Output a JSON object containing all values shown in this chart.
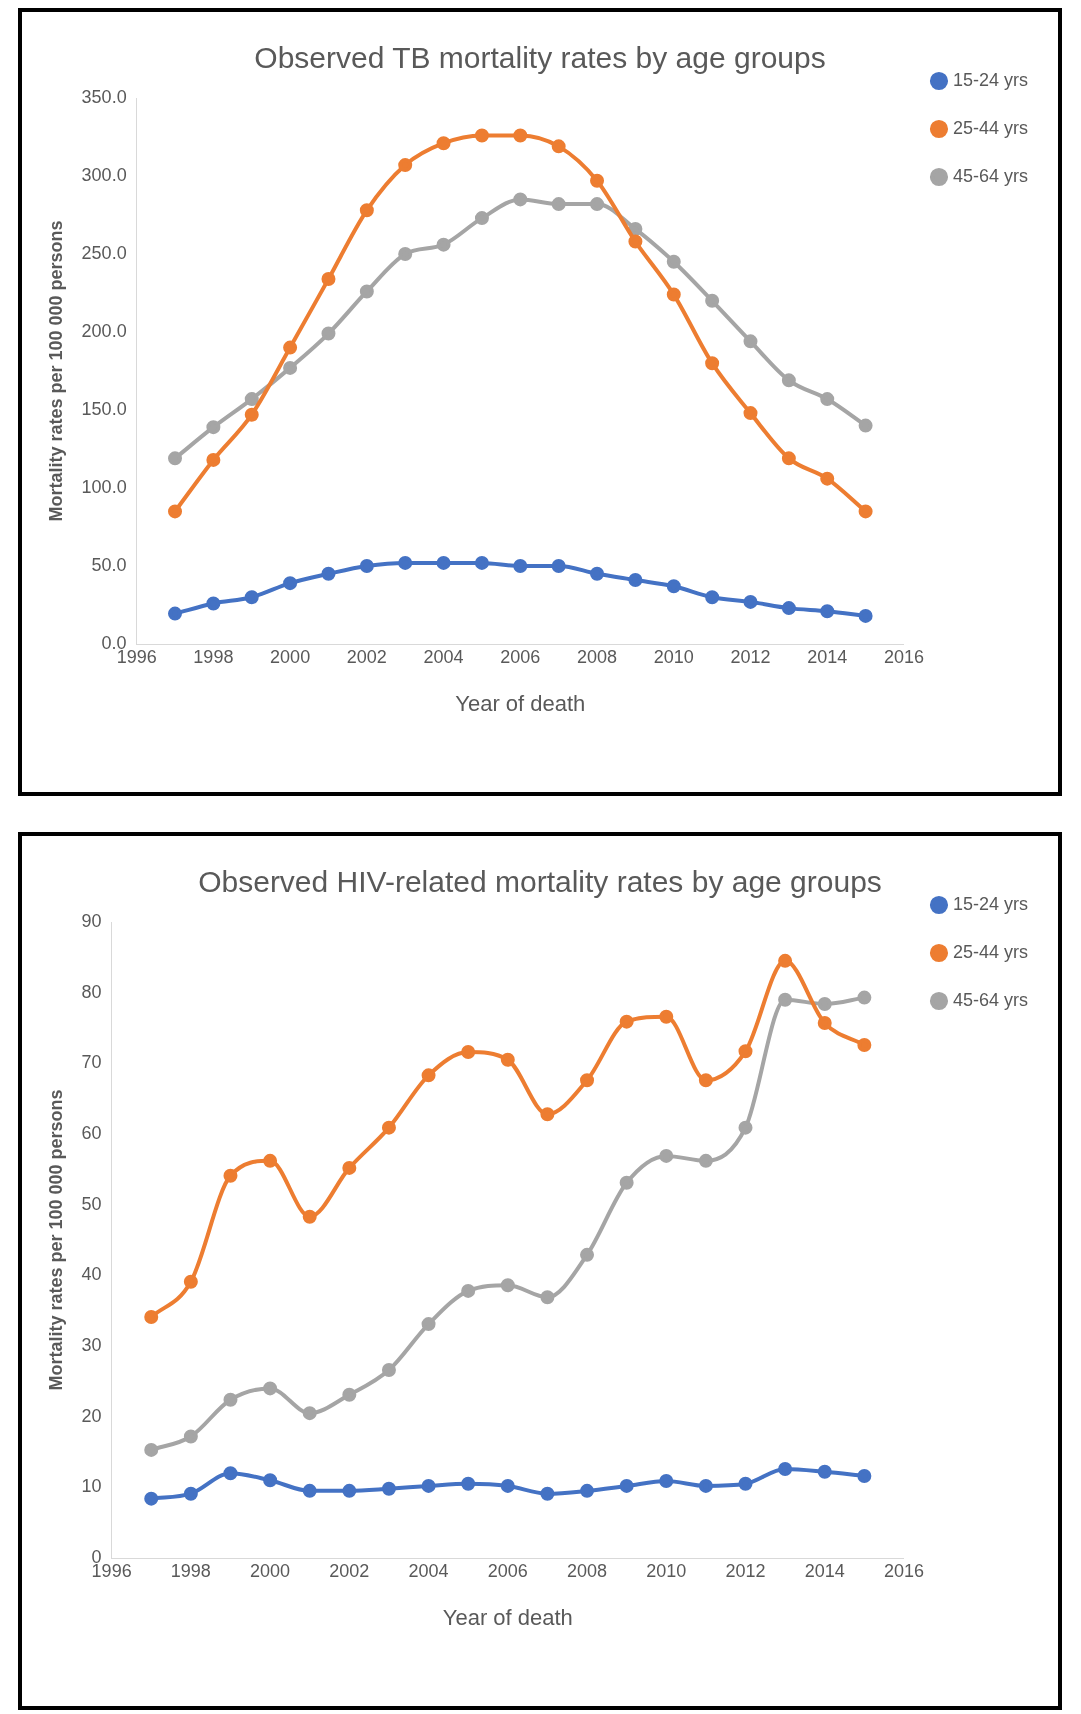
{
  "chart_data": [
    {
      "type": "line",
      "title": "Observed TB mortality rates by age groups",
      "xlabel": "Year of death",
      "ylabel": "Mortality rates per 100 000 persons",
      "x": [
        1997,
        1998,
        1999,
        2000,
        2001,
        2002,
        2003,
        2004,
        2005,
        2006,
        2007,
        2008,
        2009,
        2010,
        2011,
        2012,
        2013,
        2014,
        2015
      ],
      "series": [
        {
          "name": "15-24 yrs",
          "color": "#4472c4",
          "values": [
            19.5,
            26,
            30,
            39,
            45,
            50,
            52,
            52,
            52,
            50,
            50,
            45,
            41,
            37,
            30,
            27,
            23,
            21,
            18
          ]
        },
        {
          "name": "25-44 yrs",
          "color": "#ed7d31",
          "values": [
            85,
            118,
            147,
            190,
            234,
            278,
            307,
            321,
            326,
            326,
            319,
            297,
            258,
            224,
            180,
            148,
            119,
            106,
            85
          ]
        },
        {
          "name": "45-64 yrs",
          "color": "#a5a5a5",
          "values": [
            119,
            139,
            157,
            177,
            199,
            226,
            250,
            256,
            273,
            285,
            282,
            282,
            266,
            245,
            220,
            194,
            169,
            157,
            140
          ]
        }
      ],
      "xlim": [
        1996,
        2016
      ],
      "xticks": [
        1996,
        1998,
        2000,
        2002,
        2004,
        2006,
        2008,
        2010,
        2012,
        2014,
        2016
      ],
      "ylim": [
        0,
        350
      ],
      "yticks": [
        {
          "value": 0,
          "label": "0.0"
        },
        {
          "value": 50,
          "label": "50.0"
        },
        {
          "value": 100,
          "label": "100.0"
        },
        {
          "value": 150,
          "label": "150.0"
        },
        {
          "value": 200,
          "label": "200.0"
        },
        {
          "value": 250,
          "label": "250.0"
        },
        {
          "value": 300,
          "label": "300.0"
        },
        {
          "value": 350,
          "label": "350.0"
        }
      ],
      "legend": "top right",
      "marker": "circle",
      "line_style": "solid"
    },
    {
      "type": "line",
      "title": "Observed HIV-related mortality rates by age groups",
      "xlabel": "Year of death",
      "ylabel": "Mortality rates per 100 000 persons",
      "x": [
        1997,
        1998,
        1999,
        2000,
        2001,
        2002,
        2003,
        2004,
        2005,
        2006,
        2007,
        2008,
        2009,
        2010,
        2011,
        2012,
        2013,
        2014,
        2015
      ],
      "series": [
        {
          "name": "15-24 yrs",
          "color": "#4472c4",
          "values": [
            8.4,
            9.1,
            12,
            11,
            9.5,
            9.5,
            9.8,
            10.2,
            10.5,
            10.2,
            9.1,
            9.5,
            10.2,
            10.9,
            10.2,
            10.5,
            12.6,
            12.2,
            11.6
          ]
        },
        {
          "name": "25-44 yrs",
          "color": "#ed7d31",
          "values": [
            34.1,
            39.1,
            54.1,
            56.2,
            48.3,
            55.2,
            60.9,
            68.3,
            71.6,
            70.5,
            62.8,
            67.6,
            75.9,
            76.6,
            67.6,
            71.7,
            84.5,
            75.7,
            72.6
          ]
        },
        {
          "name": "45-64 yrs",
          "color": "#a5a5a5",
          "values": [
            15.3,
            17.2,
            22.4,
            24,
            20.5,
            23.1,
            26.6,
            33.1,
            37.8,
            38.6,
            36.9,
            42.9,
            53.1,
            56.9,
            56.2,
            60.9,
            79,
            78.4,
            79.3
          ]
        }
      ],
      "xlim": [
        1996,
        2016
      ],
      "xticks": [
        1996,
        1998,
        2000,
        2002,
        2004,
        2006,
        2008,
        2010,
        2012,
        2014,
        2016
      ],
      "ylim": [
        0,
        90
      ],
      "yticks": [
        0,
        10,
        20,
        30,
        40,
        50,
        60,
        70,
        80,
        90
      ],
      "legend": "top right",
      "marker": "circle",
      "line_style": "solid"
    }
  ]
}
